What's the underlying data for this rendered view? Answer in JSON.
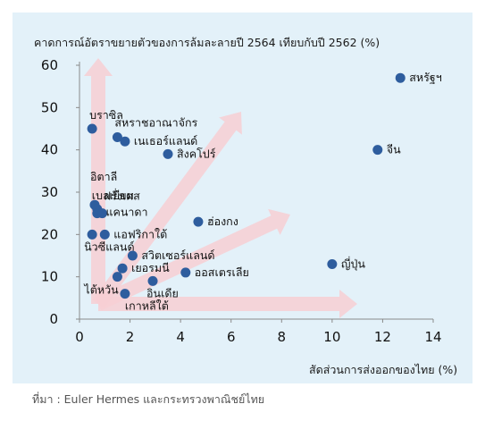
{
  "chart_data": {
    "type": "scatter",
    "title": "",
    "ylabel": "คาดการณ์อัตราขยายตัวของการล้มละลายปี 2564 เทียบกับปี 2562 (%)",
    "xlabel": "สัดส่วนการส่งออกของไทย (%)",
    "source": "ที่มา : Euler Hermes และกระทรวงพาณิชย์ไทย",
    "xlim": [
      0,
      14
    ],
    "ylim": [
      0,
      60
    ],
    "xticks": [
      0,
      2,
      4,
      6,
      8,
      10,
      12,
      14
    ],
    "yticks": [
      0,
      10,
      20,
      30,
      40,
      50,
      60
    ],
    "grid": false,
    "colors": {
      "point": "#2e5d9e",
      "arrow": "#f7cfd3",
      "panel": "#e3f1f9"
    },
    "points": [
      {
        "label": "สหรัฐฯ",
        "x": 12.7,
        "y": 57,
        "pos": "right"
      },
      {
        "label": "จีน",
        "x": 11.8,
        "y": 40,
        "pos": "right"
      },
      {
        "label": "ญี่ปุ่น",
        "x": 10.0,
        "y": 13,
        "pos": "right"
      },
      {
        "label": "บราซิล",
        "x": 0.5,
        "y": 45,
        "pos": "above"
      },
      {
        "label": "สหราชอาณาจักร",
        "x": 1.5,
        "y": 43,
        "pos": "above"
      },
      {
        "label": "เนเธอร์แลนด์",
        "x": 1.8,
        "y": 42,
        "pos": "right"
      },
      {
        "label": "สิงคโปร์",
        "x": 3.5,
        "y": 39,
        "pos": "right"
      },
      {
        "label": "อิตาลี",
        "x": 0.6,
        "y": 27,
        "pos": "above2"
      },
      {
        "label": "เบลเยียม",
        "x": 0.7,
        "y": 26,
        "pos": "above1"
      },
      {
        "label": "ฝรั่งเศส",
        "x": 0.7,
        "y": 25,
        "pos": "rightup"
      },
      {
        "label": "แคนาดา",
        "x": 0.9,
        "y": 25,
        "pos": "rightdown"
      },
      {
        "label": "ฮ่องกง",
        "x": 4.7,
        "y": 23,
        "pos": "right"
      },
      {
        "label": "นิวซีแลนด์",
        "x": 0.5,
        "y": 20,
        "pos": "below"
      },
      {
        "label": "แอฟริกาใต้",
        "x": 1.0,
        "y": 20,
        "pos": "right"
      },
      {
        "label": "สวิตเซอร์แลนด์",
        "x": 2.1,
        "y": 15,
        "pos": "right"
      },
      {
        "label": "เยอรมนี",
        "x": 1.7,
        "y": 12,
        "pos": "right"
      },
      {
        "label": "ไต้หวัน",
        "x": 1.5,
        "y": 10,
        "pos": "below"
      },
      {
        "label": "ออสเตรเลีย",
        "x": 4.2,
        "y": 11,
        "pos": "right"
      },
      {
        "label": "อินเดีย",
        "x": 2.9,
        "y": 9,
        "pos": "below"
      },
      {
        "label": "เกาหลีใต้",
        "x": 1.8,
        "y": 6,
        "pos": "below"
      }
    ]
  }
}
